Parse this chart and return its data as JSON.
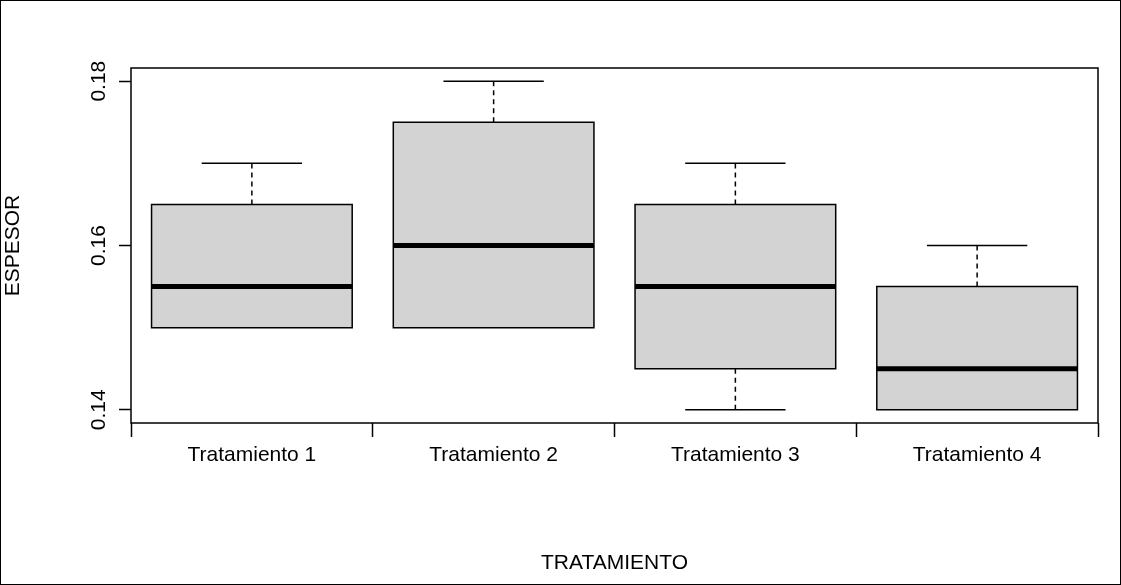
{
  "chart_data": {
    "type": "box",
    "xlabel": "TRATAMIENTO",
    "ylabel": "ESPESOR",
    "categories": [
      "Tratamiento 1",
      "Tratamiento 2",
      "Tratamiento 3",
      "Tratamiento 4"
    ],
    "boxes": [
      {
        "low": 0.15,
        "q1": 0.15,
        "median": 0.155,
        "q3": 0.165,
        "high": 0.17
      },
      {
        "low": 0.15,
        "q1": 0.15,
        "median": 0.16,
        "q3": 0.175,
        "high": 0.18
      },
      {
        "low": 0.14,
        "q1": 0.145,
        "median": 0.155,
        "q3": 0.165,
        "high": 0.17
      },
      {
        "low": 0.14,
        "q1": 0.14,
        "median": 0.145,
        "q3": 0.155,
        "high": 0.16
      }
    ],
    "color": "#d3d3d3",
    "ylim": [
      0.1384,
      0.1816
    ],
    "yticks": [
      0.14,
      0.16,
      0.18
    ],
    "grid": false,
    "legend": false
  }
}
